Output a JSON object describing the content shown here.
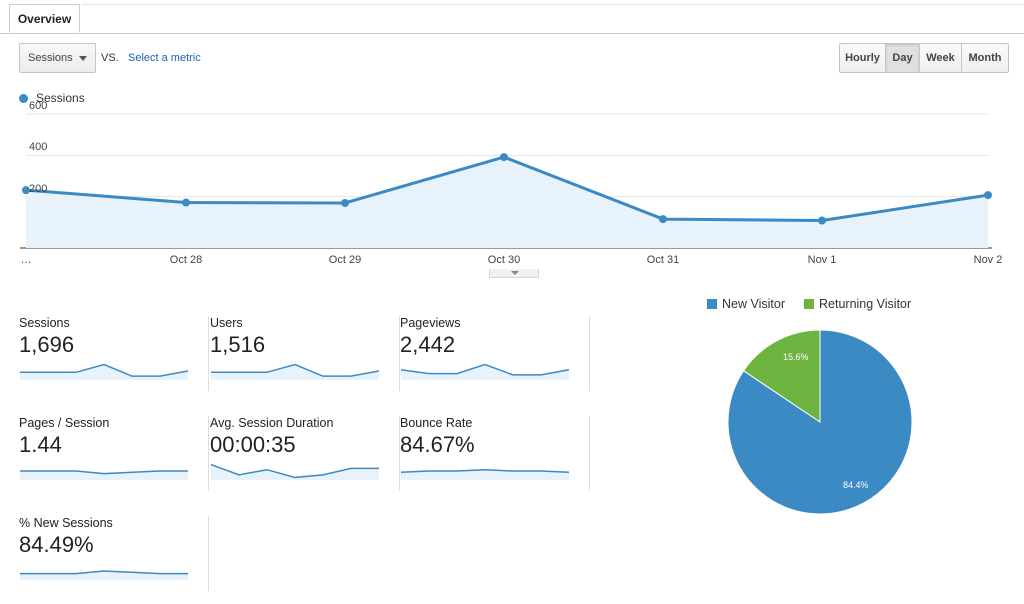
{
  "tabs": [
    {
      "label": "Overview"
    }
  ],
  "controls": {
    "metric": "Sessions",
    "vs": "VS.",
    "select_metric": "Select a metric",
    "periods": [
      "Hourly",
      "Day",
      "Week",
      "Month"
    ],
    "active_period": "Day"
  },
  "colors": {
    "primary": "#3b8ac4",
    "secondary": "#6db33f",
    "area": "#e8f2fa"
  },
  "chart_data": [
    {
      "type": "line",
      "series": [
        {
          "name": "Sessions",
          "values": [
            280,
            220,
            218,
            440,
            140,
            133,
            256
          ]
        }
      ],
      "x": [
        "…",
        "Oct 28",
        "Oct 29",
        "Oct 30",
        "Oct 31",
        "Nov 1",
        "Nov 2"
      ],
      "yticks": [
        "600",
        "400",
        "200"
      ],
      "ylim": [
        0,
        600
      ],
      "grid": true,
      "legend": "top-left"
    },
    {
      "type": "pie",
      "labels": [
        "New Visitor",
        "Returning Visitor"
      ],
      "values": [
        84.4,
        15.6
      ],
      "data_labels": [
        "84.4%",
        "15.6%"
      ],
      "colors": [
        "#3b8ac4",
        "#6db33f"
      ],
      "legend": "top"
    }
  ],
  "scorecards": [
    {
      "label": "Sessions",
      "value": "1,696",
      "spark": [
        6,
        6,
        6,
        12,
        3,
        3,
        7
      ]
    },
    {
      "label": "Users",
      "value": "1,516",
      "spark": [
        6,
        6,
        6,
        12,
        3,
        3,
        7
      ]
    },
    {
      "label": "Pageviews",
      "value": "2,442",
      "spark": [
        8,
        5,
        5,
        12,
        4,
        4,
        8
      ]
    },
    {
      "label": "Pages / Session",
      "value": "1.44",
      "spark": [
        7,
        7,
        7,
        5,
        6,
        7,
        7
      ]
    },
    {
      "label": "Avg. Session Duration",
      "value": "00:00:35",
      "spark": [
        12,
        4,
        8,
        2,
        4,
        9,
        9
      ]
    },
    {
      "label": "Bounce Rate",
      "value": "84.67%",
      "spark": [
        6,
        7,
        7,
        8,
        7,
        7,
        6
      ]
    },
    {
      "label": "% New Sessions",
      "value": "84.49%",
      "spark": [
        5,
        5,
        5,
        7,
        6,
        5,
        5
      ]
    }
  ]
}
